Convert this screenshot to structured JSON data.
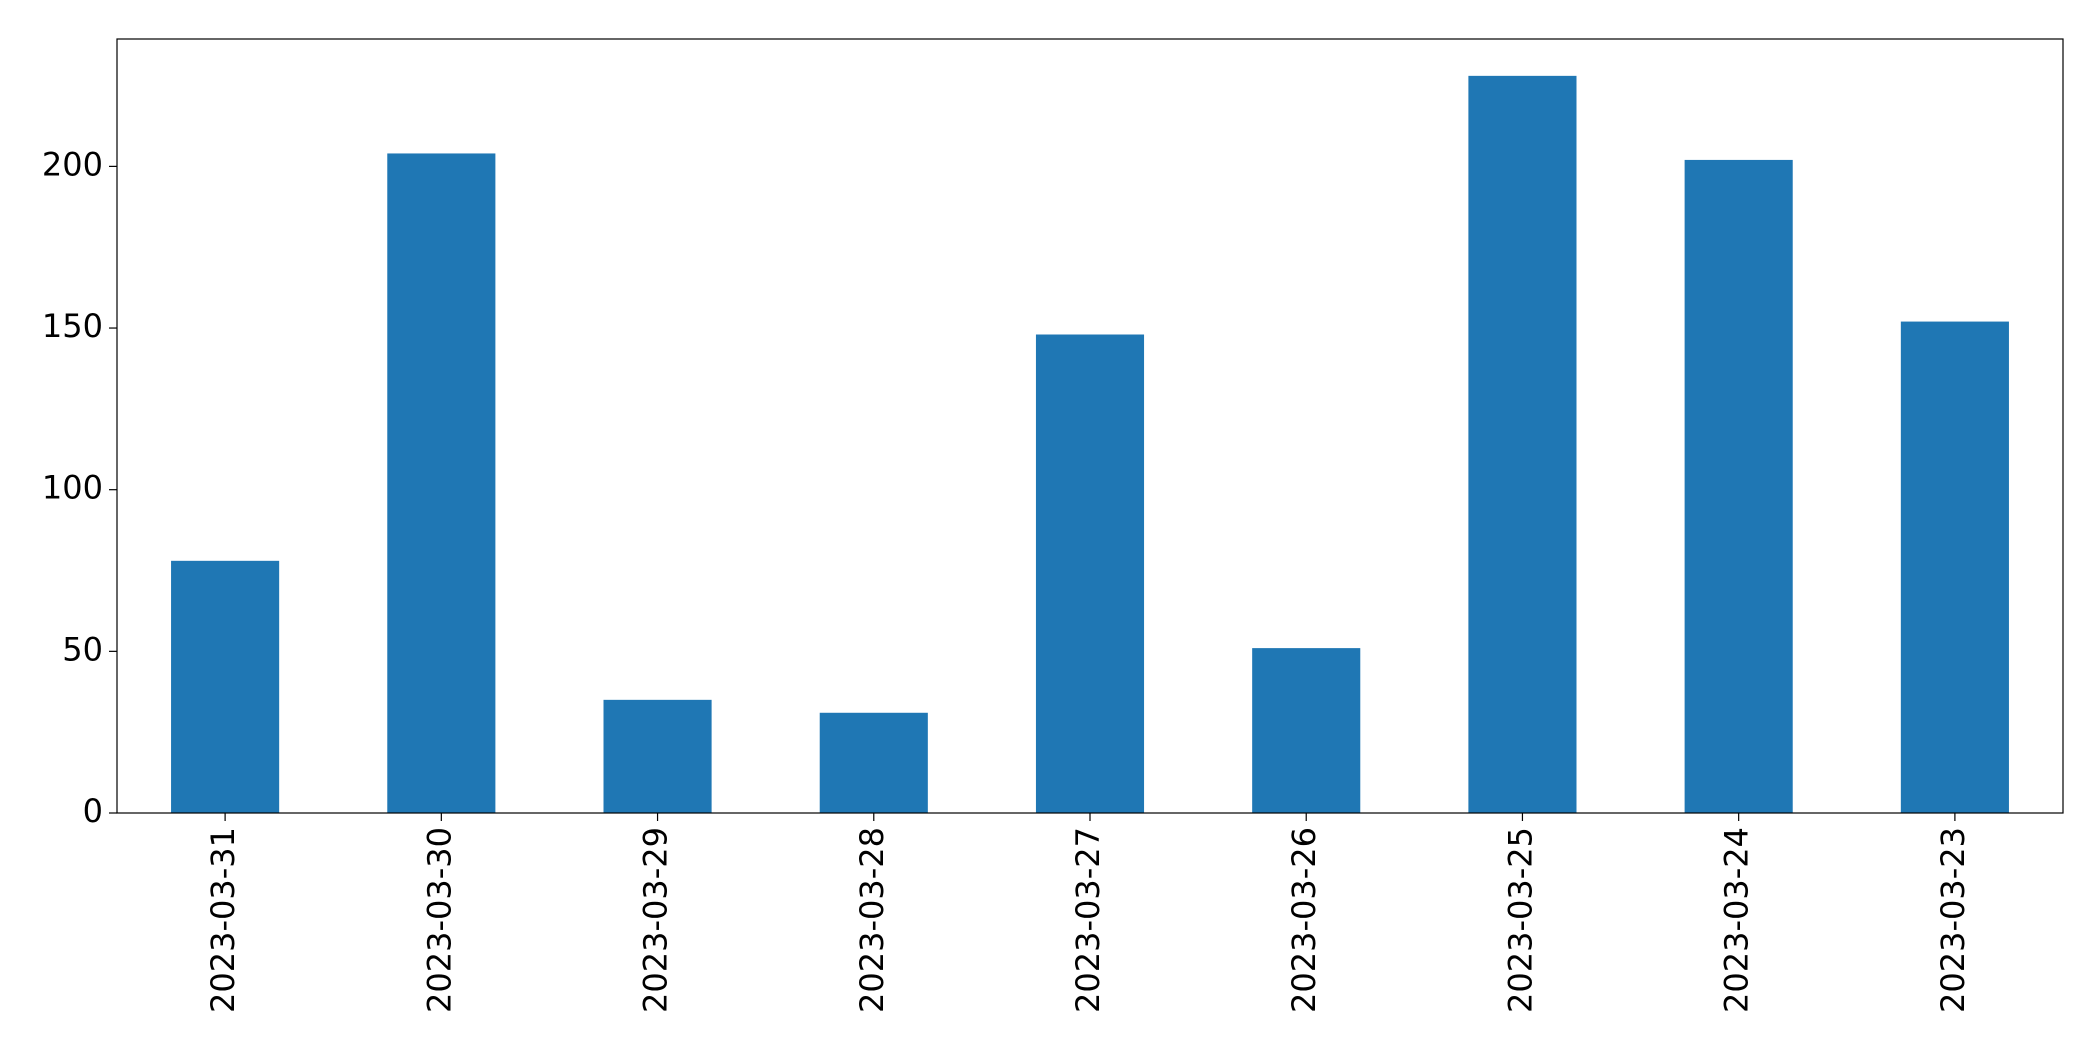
{
  "chart_data": {
    "type": "bar",
    "categories": [
      "2023-03-31",
      "2023-03-30",
      "2023-03-29",
      "2023-03-28",
      "2023-03-27",
      "2023-03-26",
      "2023-03-25",
      "2023-03-24",
      "2023-03-23"
    ],
    "values": [
      78,
      204,
      35,
      31,
      148,
      51,
      228,
      202,
      152
    ],
    "color": "#1f77b4",
    "ylim": [
      0,
      239.4
    ],
    "yticks": [
      0,
      50,
      100,
      150,
      200
    ],
    "grid": false
  }
}
